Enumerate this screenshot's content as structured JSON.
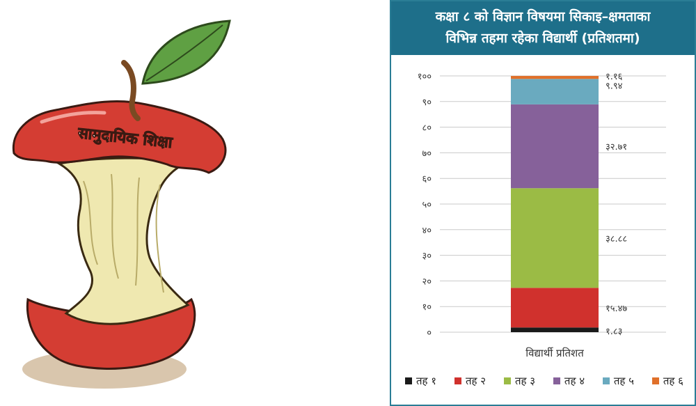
{
  "illustration": {
    "label_text": "सामुदायिक शिक्षा"
  },
  "chart": {
    "title_line1": "कक्षा ८ को विज्ञान विषयमा सिकाइ–क्षमताका",
    "title_line2": "विभिन्न तहमा रहेका विद्यार्थी (प्रतिशतमा)",
    "xlabel": "विद्यार्थी प्रतिशत"
  },
  "chart_data": {
    "type": "bar",
    "stacked": true,
    "title": "कक्षा ८ को विज्ञान विषयमा सिकाइ–क्षमताका विभिन्न तहमा रहेका विद्यार्थी (प्रतिशतमा)",
    "xlabel": "विद्यार्थी प्रतिशत",
    "ylabel": "",
    "categories": [
      "विद्यार्थी प्रतिशत"
    ],
    "ylim": [
      0,
      100
    ],
    "yticks": [
      0,
      10,
      20,
      30,
      40,
      50,
      60,
      70,
      80,
      90,
      100
    ],
    "ytick_labels": [
      "०",
      "१०",
      "२०",
      "३०",
      "४०",
      "५०",
      "६०",
      "७०",
      "८०",
      "९०",
      "१००"
    ],
    "grid": true,
    "legend_position": "bottom",
    "series": [
      {
        "name": "तह १",
        "values": [
          1.83
        ],
        "label": "१.८३",
        "color": "#1a1a1a"
      },
      {
        "name": "तह २",
        "values": [
          15.47
        ],
        "label": "१५.४७",
        "color": "#d0312d"
      },
      {
        "name": "तह ३",
        "values": [
          38.88
        ],
        "label": "३८.८८",
        "color": "#9bbb45"
      },
      {
        "name": "तह ४",
        "values": [
          32.71
        ],
        "label": "३२.७१",
        "color": "#86619a"
      },
      {
        "name": "तह ५",
        "values": [
          9.94
        ],
        "label": "९.९४",
        "color": "#6aaabf"
      },
      {
        "name": "तह ६",
        "values": [
          1.16
        ],
        "label": "१.१६",
        "color": "#e0702a"
      }
    ]
  }
}
